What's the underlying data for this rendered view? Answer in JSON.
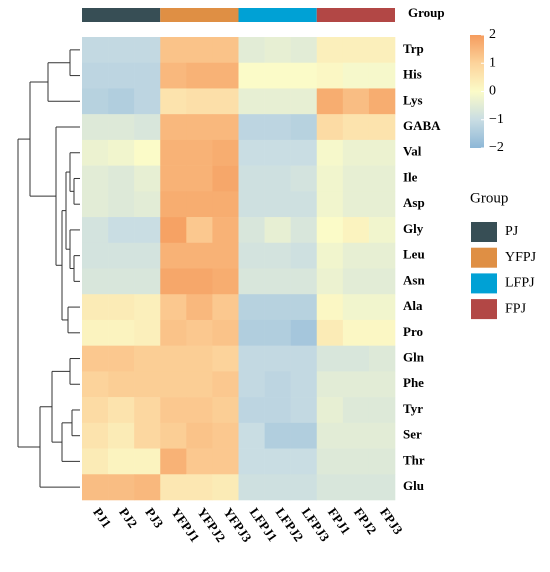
{
  "chart_data": {
    "type": "heatmap",
    "group_label": "Group",
    "legend_title": "Group",
    "groups": [
      {
        "name": "PJ",
        "color": "#374e55"
      },
      {
        "name": "YFPJ",
        "color": "#df8f44"
      },
      {
        "name": "LFPJ",
        "color": "#00a1d5"
      },
      {
        "name": "FPJ",
        "color": "#b24745"
      }
    ],
    "columns": [
      "PJ1",
      "PJ2",
      "PJ3",
      "YFPJ1",
      "YFPJ2",
      "YFPJ3",
      "LFPJ1",
      "LFPJ2",
      "LFPJ3",
      "FPJ1",
      "FPJ2",
      "FPJ3"
    ],
    "rows": [
      "Trp",
      "His",
      "Lys",
      "GABA",
      "Val",
      "Ile",
      "Asp",
      "Gly",
      "Leu",
      "Asn",
      "Ala",
      "Pro",
      "Gln",
      "Phe",
      "Tyr",
      "Ser",
      "Thr",
      "Glu"
    ],
    "values": [
      [
        -1.1,
        -1.1,
        -1.1,
        1.3,
        1.3,
        1.3,
        -0.5,
        -0.4,
        -0.5,
        0.3,
        0.3,
        0.3
      ],
      [
        -1.2,
        -1.2,
        -1.2,
        1.5,
        1.6,
        1.6,
        0,
        0,
        0,
        0.1,
        -0.1,
        -0.1
      ],
      [
        -1.3,
        -1.4,
        -1.2,
        0.6,
        0.7,
        0.7,
        -0.4,
        -0.4,
        -0.4,
        1.7,
        1.4,
        1.7
      ],
      [
        -0.6,
        -0.6,
        -0.7,
        1.5,
        1.5,
        1.5,
        -1.2,
        -1.2,
        -1.3,
        0.8,
        0.6,
        0.6
      ],
      [
        -0.3,
        -0.2,
        0,
        1.6,
        1.6,
        1.7,
        -1,
        -1,
        -1,
        -0.1,
        -0.3,
        -0.3
      ],
      [
        -0.5,
        -0.6,
        -0.4,
        1.6,
        1.6,
        1.8,
        -0.9,
        -0.9,
        -0.8,
        -0.2,
        -0.4,
        -0.4
      ],
      [
        -0.5,
        -0.6,
        -0.5,
        1.7,
        1.7,
        1.7,
        -0.9,
        -0.9,
        -0.9,
        -0.2,
        -0.4,
        -0.4
      ],
      [
        -0.8,
        -1,
        -1,
        1.9,
        1.2,
        1.6,
        -0.7,
        -0.4,
        -0.7,
        0,
        0.2,
        -0.2
      ],
      [
        -0.8,
        -0.8,
        -0.8,
        1.6,
        1.6,
        1.6,
        -0.8,
        -0.8,
        -0.9,
        -0.2,
        -0.4,
        -0.4
      ],
      [
        -0.7,
        -0.7,
        -0.7,
        1.8,
        1.8,
        1.7,
        -0.7,
        -0.7,
        -0.7,
        -0.3,
        -0.5,
        -0.5
      ],
      [
        0.4,
        0.4,
        0.3,
        1.2,
        1.5,
        1.2,
        -1.3,
        -1.3,
        -1.3,
        0.1,
        -0.2,
        -0.2
      ],
      [
        0.2,
        0.2,
        0.3,
        1.3,
        1.2,
        1.3,
        -1.4,
        -1.4,
        -1.6,
        0.4,
        0.1,
        0.1
      ],
      [
        1.2,
        1.2,
        1.1,
        1.1,
        1.1,
        1,
        -1.1,
        -1.1,
        -1.1,
        -0.7,
        -0.7,
        -0.6
      ],
      [
        1,
        1.1,
        1.1,
        1.1,
        1.1,
        1.2,
        -1.1,
        -1.2,
        -1.1,
        -0.5,
        -0.5,
        -0.5
      ],
      [
        0.8,
        0.6,
        0.9,
        1.2,
        1.2,
        1.1,
        -1.2,
        -1.2,
        -1.1,
        -0.4,
        -0.6,
        -0.6
      ],
      [
        0.6,
        0.4,
        0.9,
        1.1,
        1.3,
        1.2,
        -1,
        -1.4,
        -1.4,
        -0.5,
        -0.5,
        -0.5
      ],
      [
        0.4,
        0.2,
        0.2,
        1.6,
        1.2,
        1.2,
        -1,
        -1,
        -1,
        -0.6,
        -0.6,
        -0.6
      ],
      [
        1.4,
        1.4,
        1.5,
        0.5,
        0.5,
        0.4,
        -0.9,
        -0.9,
        -0.9,
        -0.7,
        -0.7,
        -0.7
      ]
    ],
    "zlim": [
      -2,
      2
    ],
    "zticks": [
      2,
      1,
      0,
      {
        "value": -1,
        "label": "−1"
      },
      {
        "value": -2,
        "label": "−2"
      }
    ],
    "colorscale": [
      "#8db7d7",
      "#c9dde3",
      "#fbfbc8",
      "#fcd39b",
      "#f59c5e"
    ]
  }
}
